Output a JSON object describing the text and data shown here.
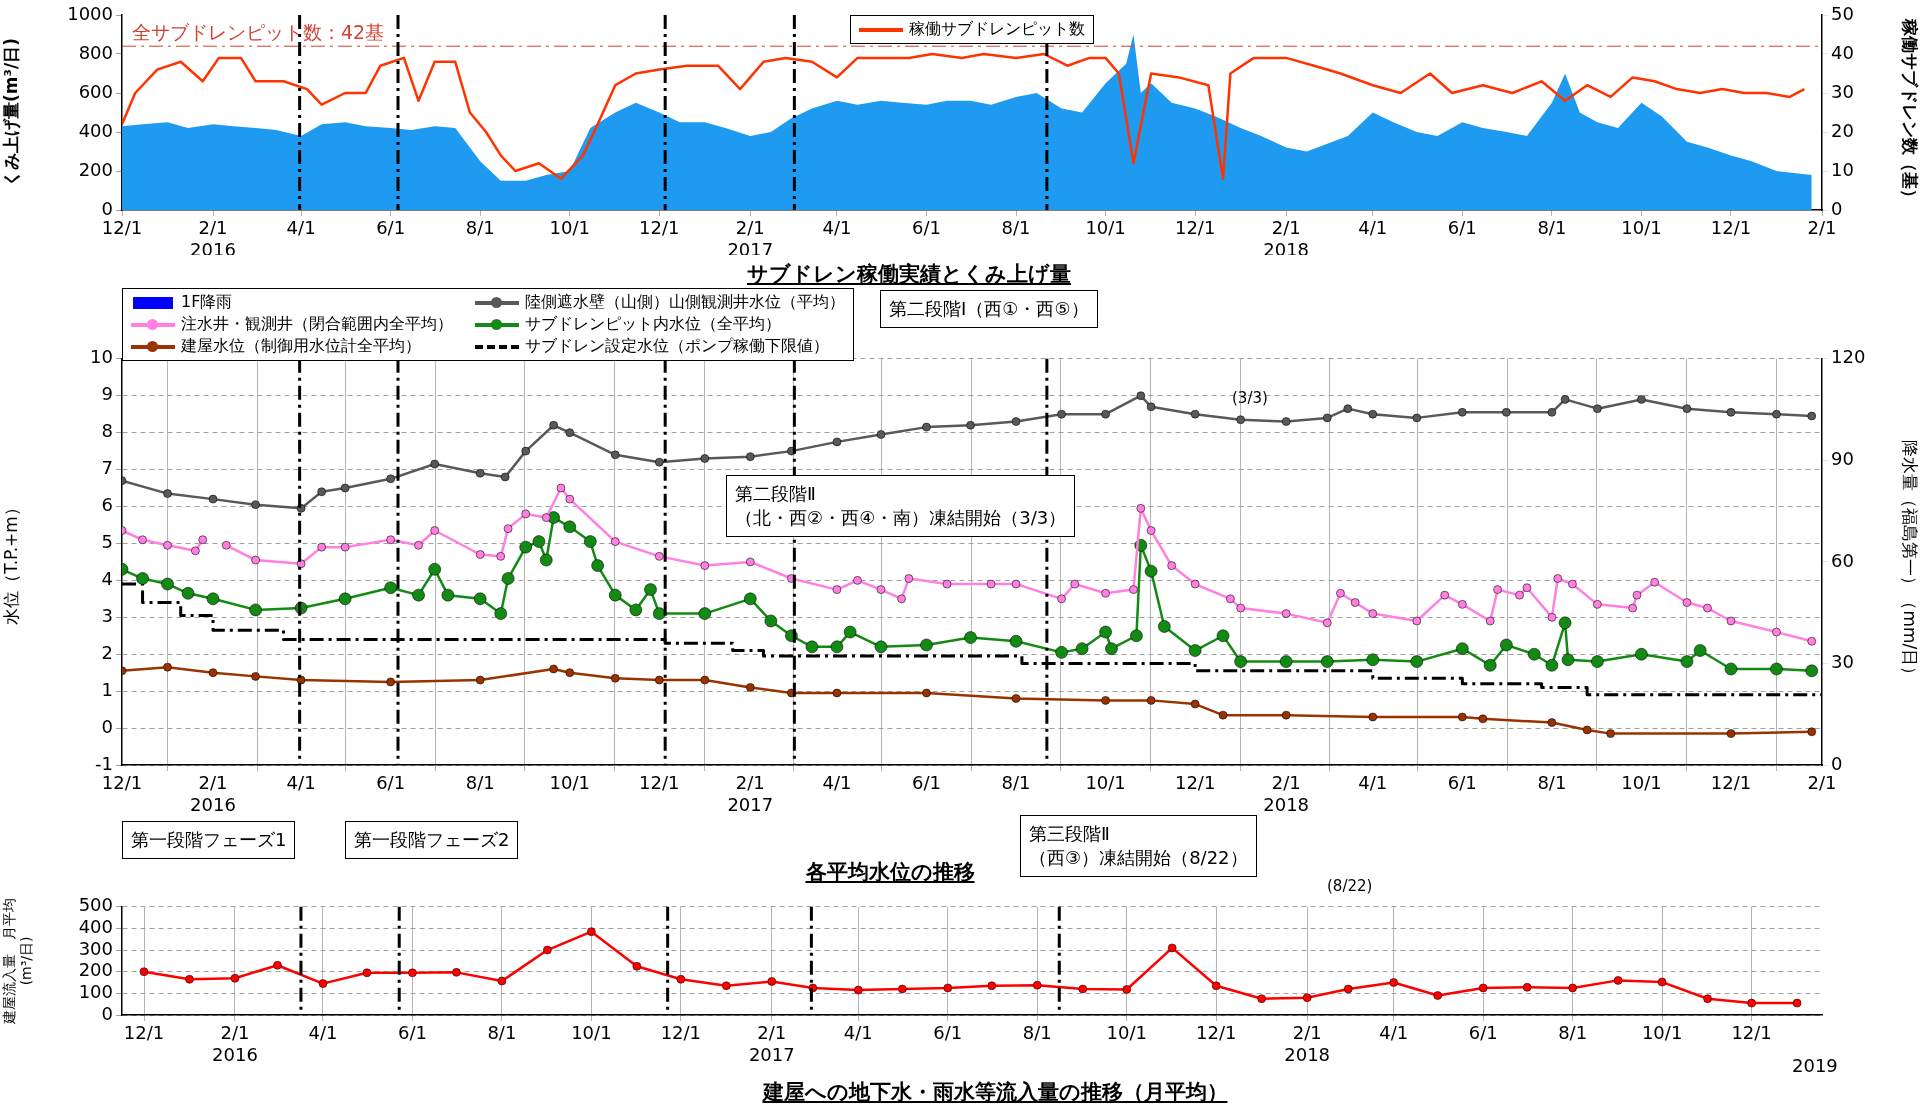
{
  "chart_data": [
    {
      "type": "area",
      "title": "サブドレン稼働実績とくみ上げ量",
      "ylabel": "くみ上げ量(m³/日)",
      "y2label": "稼働サブドレン数（基）",
      "xlim": [
        "2015-12-01",
        "2019-02-01"
      ],
      "xticks": [
        {
          "value": "2015-12-01",
          "label": "12/1"
        },
        {
          "value": "2016-02-01",
          "label": "2/1\n2016"
        },
        {
          "value": "2016-04-01",
          "label": "4/1"
        },
        {
          "value": "2016-06-01",
          "label": "6/1"
        },
        {
          "value": "2016-08-01",
          "label": "8/1"
        },
        {
          "value": "2016-10-01",
          "label": "10/1"
        },
        {
          "value": "2016-12-01",
          "label": "12/1"
        },
        {
          "value": "2017-02-01",
          "label": "2/1\n2017"
        },
        {
          "value": "2017-04-01",
          "label": "4/1"
        },
        {
          "value": "2017-06-01",
          "label": "6/1"
        },
        {
          "value": "2017-08-01",
          "label": "8/1"
        },
        {
          "value": "2017-10-01",
          "label": "10/1"
        },
        {
          "value": "2017-12-01",
          "label": "12/1"
        },
        {
          "value": "2018-02-01",
          "label": "2/1\n2018"
        },
        {
          "value": "2018-04-01",
          "label": "4/1"
        },
        {
          "value": "2018-06-01",
          "label": "6/1"
        },
        {
          "value": "2018-08-01",
          "label": "8/1"
        },
        {
          "value": "2018-10-01",
          "label": "10/1"
        },
        {
          "value": "2018-12-01",
          "label": "12/1"
        },
        {
          "value": "2019-02-01",
          "label": "2/1"
        }
      ],
      "ylim": [
        0,
        1000
      ],
      "yticks": [
        0,
        200,
        400,
        600,
        800,
        1000
      ],
      "y2lim": [
        0,
        50
      ],
      "y2ticks": [
        0,
        10,
        20,
        30,
        40,
        50
      ],
      "grid": false,
      "legend": "top",
      "ref_lines": [
        {
          "axis": "y2",
          "value": 42,
          "label": "全サブドレンピット数：42基",
          "color": "#d04030",
          "line_style": "dashed"
        },
        {
          "axis": "x",
          "value": "2016-03-31",
          "color": "#000000",
          "line_style": "dashed"
        },
        {
          "axis": "x",
          "value": "2016-06-06",
          "color": "#000000",
          "line_style": "dashed"
        },
        {
          "axis": "x",
          "value": "2016-12-05",
          "color": "#000000",
          "line_style": "dashed"
        },
        {
          "axis": "x",
          "value": "2017-03-03",
          "color": "#000000",
          "line_style": "dashed"
        },
        {
          "axis": "x",
          "value": "2017-08-22",
          "color": "#000000",
          "line_style": "dashed"
        }
      ],
      "series": [
        {
          "color": "#1e9bf0",
          "x": [
            "2015-12-01",
            "2015-12-15",
            "2016-01-01",
            "2016-01-15",
            "2016-02-01",
            "2016-02-15",
            "2016-03-01",
            "2016-03-15",
            "2016-04-01",
            "2016-04-15",
            "2016-05-01",
            "2016-05-15",
            "2016-06-01",
            "2016-06-15",
            "2016-07-01",
            "2016-07-15",
            "2016-08-01",
            "2016-08-15",
            "2016-09-01",
            "2016-09-15",
            "2016-10-01",
            "2016-10-15",
            "2016-11-01",
            "2016-11-15",
            "2016-12-01",
            "2016-12-15",
            "2017-01-01",
            "2017-01-15",
            "2017-02-01",
            "2017-02-15",
            "2017-03-01",
            "2017-03-15",
            "2017-04-01",
            "2017-04-15",
            "2017-05-01",
            "2017-05-15",
            "2017-06-01",
            "2017-06-15",
            "2017-07-01",
            "2017-07-15",
            "2017-08-01",
            "2017-08-15",
            "2017-09-01",
            "2017-09-15",
            "2017-10-01",
            "2017-10-15",
            "2017-10-20",
            "2017-10-25",
            "2017-11-01",
            "2017-11-15",
            "2017-12-01",
            "2017-12-15",
            "2018-01-01",
            "2018-01-15",
            "2018-02-01",
            "2018-02-15",
            "2018-03-01",
            "2018-03-15",
            "2018-04-01",
            "2018-04-15",
            "2018-05-01",
            "2018-05-15",
            "2018-06-01",
            "2018-06-15",
            "2018-07-01",
            "2018-07-15",
            "2018-08-01",
            "2018-08-10",
            "2018-08-20",
            "2018-09-01",
            "2018-09-15",
            "2018-10-01",
            "2018-10-15",
            "2018-11-01",
            "2018-11-15",
            "2018-12-01",
            "2018-12-15",
            "2019-01-01",
            "2019-01-25"
          ],
          "values": [
            430,
            440,
            450,
            420,
            440,
            430,
            420,
            410,
            380,
            440,
            450,
            430,
            420,
            410,
            430,
            420,
            250,
            150,
            150,
            180,
            200,
            420,
            500,
            550,
            500,
            450,
            450,
            420,
            380,
            400,
            470,
            520,
            560,
            540,
            560,
            550,
            540,
            560,
            560,
            540,
            580,
            600,
            520,
            500,
            650,
            750,
            900,
            600,
            650,
            550,
            520,
            480,
            420,
            380,
            320,
            300,
            340,
            380,
            500,
            450,
            400,
            380,
            450,
            420,
            400,
            380,
            550,
            700,
            500,
            450,
            420,
            550,
            480,
            350,
            320,
            280,
            250,
            200,
            180
          ]
        },
        {
          "type": "line",
          "name": "稼働サブドレンピット数",
          "axis": "y2",
          "color": "#ff3300",
          "marker": "none",
          "x": [
            "2015-12-01",
            "2015-12-10",
            "2015-12-25",
            "2016-01-10",
            "2016-01-25",
            "2016-02-05",
            "2016-02-20",
            "2016-03-01",
            "2016-03-20",
            "2016-04-05",
            "2016-04-15",
            "2016-05-01",
            "2016-05-15",
            "2016-05-25",
            "2016-06-10",
            "2016-06-20",
            "2016-07-01",
            "2016-07-15",
            "2016-07-25",
            "2016-08-05",
            "2016-08-15",
            "2016-08-25",
            "2016-09-10",
            "2016-09-25",
            "2016-10-10",
            "2016-10-20",
            "2016-11-01",
            "2016-11-15",
            "2016-12-01",
            "2016-12-20",
            "2017-01-10",
            "2017-01-25",
            "2017-02-10",
            "2017-02-25",
            "2017-03-15",
            "2017-04-01",
            "2017-04-15",
            "2017-05-01",
            "2017-05-20",
            "2017-06-05",
            "2017-06-25",
            "2017-07-10",
            "2017-08-01",
            "2017-08-20",
            "2017-09-05",
            "2017-09-20",
            "2017-10-01",
            "2017-10-10",
            "2017-10-20",
            "2017-11-01",
            "2017-11-20",
            "2017-12-10",
            "2017-12-20",
            "2017-12-25",
            "2018-01-10",
            "2018-02-01",
            "2018-02-20",
            "2018-03-10",
            "2018-04-01",
            "2018-04-20",
            "2018-05-10",
            "2018-05-25",
            "2018-06-15",
            "2018-07-05",
            "2018-07-25",
            "2018-08-10",
            "2018-08-25",
            "2018-09-10",
            "2018-09-25",
            "2018-10-10",
            "2018-10-25",
            "2018-11-10",
            "2018-11-25",
            "2018-12-10",
            "2018-12-25",
            "2019-01-10",
            "2019-01-20"
          ],
          "values": [
            22,
            30,
            36,
            38,
            33,
            39,
            39,
            33,
            33,
            31,
            27,
            30,
            30,
            37,
            39,
            28,
            38,
            38,
            25,
            20,
            14,
            10,
            12,
            8,
            14,
            22,
            32,
            35,
            36,
            37,
            37,
            31,
            38,
            39,
            38,
            34,
            39,
            39,
            39,
            40,
            39,
            40,
            39,
            40,
            37,
            39,
            39,
            35,
            12,
            35,
            34,
            32,
            8,
            35,
            39,
            39,
            37,
            35,
            32,
            30,
            35,
            30,
            32,
            30,
            33,
            28,
            32,
            29,
            34,
            33,
            31,
            30,
            31,
            30,
            30,
            29,
            31
          ]
        }
      ]
    },
    {
      "type": "line",
      "title": "各平均水位の推移",
      "ylabel": "水位（T.P.+m）",
      "y2label": "降水量（福島第一）（mm/日）",
      "xlim": [
        "2015-12-01",
        "2019-02-01"
      ],
      "xticks": [
        {
          "value": "2015-12-01",
          "label": "12/1"
        },
        {
          "value": "2016-02-01",
          "label": "2/1\n2016"
        },
        {
          "value": "2016-04-01",
          "label": "4/1"
        },
        {
          "value": "2016-06-01",
          "label": "6/1"
        },
        {
          "value": "2016-08-01",
          "label": "8/1"
        },
        {
          "value": "2016-10-01",
          "label": "10/1"
        },
        {
          "value": "2016-12-01",
          "label": "12/1"
        },
        {
          "value": "2017-02-01",
          "label": "2/1\n2017"
        },
        {
          "value": "2017-04-01",
          "label": "4/1"
        },
        {
          "value": "2017-06-01",
          "label": "6/1"
        },
        {
          "value": "2017-08-01",
          "label": "8/1"
        },
        {
          "value": "2017-10-01",
          "label": "10/1"
        },
        {
          "value": "2017-12-01",
          "label": "12/1"
        },
        {
          "value": "2018-02-01",
          "label": "2/1\n2018"
        },
        {
          "value": "2018-04-01",
          "label": "4/1"
        },
        {
          "value": "2018-06-01",
          "label": "6/1"
        },
        {
          "value": "2018-08-01",
          "label": "8/1"
        },
        {
          "value": "2018-10-01",
          "label": "10/1"
        },
        {
          "value": "2018-12-01",
          "label": "12/1"
        },
        {
          "value": "2019-02-01",
          "label": "2/1"
        }
      ],
      "ylim": [
        -1,
        10
      ],
      "yticks": [
        -1,
        0,
        1,
        2,
        3,
        4,
        5,
        6,
        7,
        8,
        9,
        10
      ],
      "y2lim": [
        0,
        120
      ],
      "y2ticks": [
        0,
        30,
        60,
        90,
        120
      ],
      "grid": true,
      "legend": "top left",
      "ref_lines": [
        {
          "axis": "x",
          "value": "2016-03-31",
          "color": "#000000",
          "line_style": "dashed"
        },
        {
          "axis": "x",
          "value": "2016-06-06",
          "color": "#000000",
          "line_style": "dashed"
        },
        {
          "axis": "x",
          "value": "2016-12-05",
          "color": "#000000",
          "line_style": "dashed"
        },
        {
          "axis": "x",
          "value": "2017-03-03",
          "color": "#000000",
          "line_style": "dashed"
        },
        {
          "axis": "x",
          "value": "2017-08-22",
          "color": "#000000",
          "line_style": "dashed"
        }
      ],
      "annotations": [
        "第二段階Ⅰ（西①・西⑤）",
        "第二段階Ⅱ\n（北・西②・西④・南）凍結開始（3/3）",
        "(3/3)"
      ],
      "series": [
        {
          "type": "bar",
          "name": "1F降雨",
          "axis": "y2",
          "color": "#0000ff"
        },
        {
          "name": "陸側遮水壁（山側）山側観測井水位（平均）",
          "color": "#595959",
          "marker": "circle",
          "x": [
            "2015-12-01",
            "2016-01-01",
            "2016-02-01",
            "2016-03-01",
            "2016-04-01",
            "2016-04-15",
            "2016-05-01",
            "2016-06-01",
            "2016-07-01",
            "2016-08-01",
            "2016-08-18",
            "2016-09-01",
            "2016-09-20",
            "2016-10-01",
            "2016-11-01",
            "2016-12-01",
            "2017-01-01",
            "2017-02-01",
            "2017-03-01",
            "2017-04-01",
            "2017-05-01",
            "2017-06-01",
            "2017-07-01",
            "2017-08-01",
            "2017-09-01",
            "2017-10-01",
            "2017-10-25",
            "2017-11-01",
            "2017-12-01",
            "2018-01-01",
            "2018-02-01",
            "2018-03-01",
            "2018-03-15",
            "2018-04-01",
            "2018-05-01",
            "2018-06-01",
            "2018-07-01",
            "2018-08-01",
            "2018-08-10",
            "2018-09-01",
            "2018-10-01",
            "2018-11-01",
            "2018-12-01",
            "2019-01-01",
            "2019-01-25"
          ],
          "values": [
            6.7,
            6.35,
            6.2,
            6.05,
            5.95,
            6.4,
            6.5,
            6.75,
            7.15,
            6.9,
            6.8,
            7.5,
            8.2,
            8.0,
            7.4,
            7.2,
            7.3,
            7.35,
            7.5,
            7.75,
            7.95,
            8.15,
            8.2,
            8.3,
            8.5,
            8.5,
            9.0,
            8.7,
            8.5,
            8.35,
            8.3,
            8.4,
            8.65,
            8.5,
            8.4,
            8.55,
            8.55,
            8.55,
            8.9,
            8.65,
            8.9,
            8.65,
            8.55,
            8.5,
            8.45
          ]
        },
        {
          "name": "注水井・観測井（閉合範囲内全平均）",
          "color": "#ff80e0",
          "marker": "circle",
          "x": [
            "2015-12-01",
            "2015-12-15",
            "2016-01-01",
            "2016-01-20",
            "2016-01-25",
            "2016-02-01",
            "2016-02-10",
            "2016-03-01",
            "2016-04-01",
            "2016-04-15",
            "2016-05-01",
            "2016-06-01",
            "2016-06-20",
            "2016-07-01",
            "2016-08-01",
            "2016-08-15",
            "2016-08-20",
            "2016-09-01",
            "2016-09-15",
            "2016-09-25",
            "2016-10-01",
            "2016-11-01",
            "2016-12-01",
            "2017-01-01",
            "2017-02-01",
            "2017-03-01",
            "2017-04-01",
            "2017-04-15",
            "2017-05-01",
            "2017-05-15",
            "2017-05-20",
            "2017-06-15",
            "2017-07-15",
            "2017-08-01",
            "2017-09-01",
            "2017-09-10",
            "2017-10-01",
            "2017-10-20",
            "2017-10-25",
            "2017-11-01",
            "2017-11-15",
            "2017-12-01",
            "2017-12-25",
            "2018-01-01",
            "2018-02-01",
            "2018-03-01",
            "2018-03-10",
            "2018-03-20",
            "2018-04-01",
            "2018-05-01",
            "2018-05-20",
            "2018-06-01",
            "2018-06-20",
            "2018-06-25",
            "2018-07-10",
            "2018-07-15",
            "2018-08-01",
            "2018-08-05",
            "2018-08-15",
            "2018-09-01",
            "2018-09-25",
            "2018-09-28",
            "2018-10-10",
            "2018-11-01",
            "2018-11-15",
            "2018-12-01",
            "2019-01-01",
            "2019-01-25"
          ],
          "values": [
            5.35,
            5.1,
            4.95,
            4.8,
            5.1,
            null,
            4.95,
            4.55,
            4.45,
            4.9,
            4.9,
            5.1,
            4.95,
            5.35,
            4.7,
            4.65,
            5.4,
            5.8,
            5.7,
            6.5,
            6.2,
            5.05,
            4.65,
            4.4,
            4.5,
            4.05,
            3.75,
            4.0,
            3.75,
            3.5,
            4.05,
            3.9,
            3.9,
            3.9,
            3.5,
            3.9,
            3.65,
            3.75,
            5.95,
            5.35,
            4.4,
            3.9,
            3.5,
            3.25,
            3.1,
            2.85,
            3.65,
            3.4,
            3.1,
            2.9,
            3.6,
            3.35,
            2.9,
            3.75,
            3.6,
            3.8,
            3.0,
            4.05,
            3.9,
            3.35,
            3.25,
            3.6,
            3.95,
            3.4,
            3.25,
            2.9,
            2.6,
            2.35
          ]
        },
        {
          "name": "サブドレンピット内水位（全平均）",
          "color": "#138a13",
          "marker": "circle",
          "x": [
            "2015-12-01",
            "2015-12-15",
            "2016-01-01",
            "2016-01-15",
            "2016-02-01",
            "2016-03-01",
            "2016-04-01",
            "2016-05-01",
            "2016-06-01",
            "2016-06-20",
            "2016-07-01",
            "2016-07-10",
            "2016-08-01",
            "2016-08-15",
            "2016-08-20",
            "2016-09-01",
            "2016-09-10",
            "2016-09-15",
            "2016-09-20",
            "2016-10-01",
            "2016-10-15",
            "2016-10-20",
            "2016-11-01",
            "2016-11-15",
            "2016-11-25",
            "2016-12-01",
            "2017-01-01",
            "2017-02-01",
            "2017-02-15",
            "2017-03-01",
            "2017-03-15",
            "2017-04-01",
            "2017-04-10",
            "2017-05-01",
            "2017-06-01",
            "2017-07-01",
            "2017-08-01",
            "2017-09-01",
            "2017-09-15",
            "2017-10-01",
            "2017-10-05",
            "2017-10-22",
            "2017-10-25",
            "2017-11-01",
            "2017-11-10",
            "2017-12-01",
            "2017-12-20",
            "2018-01-01",
            "2018-02-01",
            "2018-03-01",
            "2018-04-01",
            "2018-05-01",
            "2018-06-01",
            "2018-06-20",
            "2018-07-01",
            "2018-07-20",
            "2018-08-01",
            "2018-08-10",
            "2018-08-12",
            "2018-09-01",
            "2018-10-01",
            "2018-11-01",
            "2018-11-10",
            "2018-12-01",
            "2019-01-01",
            "2019-01-25"
          ],
          "values": [
            4.3,
            4.05,
            3.9,
            3.65,
            3.5,
            3.2,
            3.25,
            3.5,
            3.8,
            3.6,
            4.3,
            3.6,
            3.5,
            3.1,
            4.05,
            4.9,
            5.05,
            4.55,
            5.7,
            5.45,
            5.05,
            4.4,
            3.6,
            3.2,
            3.75,
            3.1,
            3.1,
            3.5,
            2.9,
            2.5,
            2.2,
            2.2,
            2.6,
            2.2,
            2.25,
            2.45,
            2.35,
            2.05,
            2.15,
            2.6,
            2.15,
            2.5,
            4.95,
            4.25,
            2.75,
            2.1,
            2.5,
            1.8,
            1.8,
            1.8,
            1.85,
            1.8,
            2.15,
            1.7,
            2.25,
            2.0,
            1.7,
            2.85,
            1.85,
            1.8,
            2.0,
            1.8,
            2.1,
            1.6,
            1.6,
            1.55
          ]
        },
        {
          "name": "建屋水位（制御用水位計全平均）",
          "color": "#993300",
          "marker": "circle",
          "x": [
            "2015-12-01",
            "2016-01-01",
            "2016-02-01",
            "2016-03-01",
            "2016-04-01",
            "2016-06-01",
            "2016-08-01",
            "2016-09-20",
            "2016-10-01",
            "2016-11-01",
            "2016-12-01",
            "2017-01-01",
            "2017-02-01",
            "2017-03-01",
            "2017-04-01",
            "2017-06-01",
            "2017-08-01",
            "2017-10-01",
            "2017-11-01",
            "2017-12-01",
            "2017-12-20",
            "2018-02-01",
            "2018-04-01",
            "2018-06-01",
            "2018-06-15",
            "2018-08-01",
            "2018-08-25",
            "2018-09-10",
            "2018-12-01",
            "2019-01-25"
          ],
          "values": [
            1.55,
            1.65,
            1.5,
            1.4,
            1.3,
            1.25,
            1.3,
            1.6,
            1.5,
            1.35,
            1.3,
            1.3,
            1.1,
            0.95,
            0.95,
            0.95,
            0.8,
            0.75,
            0.75,
            0.65,
            0.35,
            0.35,
            0.3,
            0.3,
            0.25,
            0.15,
            -0.05,
            -0.15,
            -0.15,
            -0.1
          ]
        },
        {
          "type": "step",
          "name": "サブドレン設定水位（ポンプ稼働下限値）",
          "color": "#000000",
          "marker": "none",
          "line_style": "dashed",
          "x": [
            "2015-12-01",
            "2015-12-15",
            "2016-01-10",
            "2016-02-01",
            "2016-03-20",
            "2016-12-05",
            "2017-01-20",
            "2017-02-10",
            "2017-08-05",
            "2017-12-01",
            "2018-04-01",
            "2018-06-01",
            "2018-07-25",
            "2018-08-25",
            "2019-02-01"
          ],
          "values": [
            3.9,
            3.4,
            3.05,
            2.65,
            2.4,
            2.3,
            2.1,
            1.95,
            1.75,
            1.55,
            1.35,
            1.2,
            1.1,
            0.9,
            0.9
          ]
        }
      ]
    },
    {
      "type": "line",
      "title": "建屋への地下水・雨水等流入量の推移（月平均）",
      "ylabel": "建屋流入量　月平均\n(m³/日)",
      "xlim": [
        "2015-11-16",
        "2019-01-18"
      ],
      "xticks": [
        {
          "value": "2015-12-01",
          "label": "12/1"
        },
        {
          "value": "2016-02-01",
          "label": "2/1\n2016"
        },
        {
          "value": "2016-04-01",
          "label": "4/1"
        },
        {
          "value": "2016-06-01",
          "label": "6/1"
        },
        {
          "value": "2016-08-01",
          "label": "8/1"
        },
        {
          "value": "2016-10-01",
          "label": "10/1"
        },
        {
          "value": "2016-12-01",
          "label": "12/1"
        },
        {
          "value": "2017-02-01",
          "label": "2/1\n2017"
        },
        {
          "value": "2017-04-01",
          "label": "4/1"
        },
        {
          "value": "2017-06-01",
          "label": "6/1"
        },
        {
          "value": "2017-08-01",
          "label": "8/1"
        },
        {
          "value": "2017-10-01",
          "label": "10/1"
        },
        {
          "value": "2017-12-01",
          "label": "12/1"
        },
        {
          "value": "2018-02-01",
          "label": "2/1\n2018"
        },
        {
          "value": "2018-04-01",
          "label": "4/1"
        },
        {
          "value": "2018-06-01",
          "label": "6/1"
        },
        {
          "value": "2018-08-01",
          "label": "8/1"
        },
        {
          "value": "2018-10-01",
          "label": "10/1"
        },
        {
          "value": "2018-12-01",
          "label": "12/1"
        }
      ],
      "ylim": [
        0,
        500
      ],
      "yticks": [
        0,
        100,
        200,
        300,
        400,
        500
      ],
      "grid": true,
      "ref_lines": [
        {
          "axis": "x",
          "value": "2016-03-17",
          "color": "#000000",
          "line_style": "dashed"
        },
        {
          "axis": "x",
          "value": "2016-05-23",
          "color": "#000000",
          "line_style": "dashed"
        },
        {
          "axis": "x",
          "value": "2016-11-22",
          "color": "#000000",
          "line_style": "dashed"
        },
        {
          "axis": "x",
          "value": "2017-02-28",
          "color": "#000000",
          "line_style": "dashed"
        },
        {
          "axis": "x",
          "value": "2017-08-16",
          "color": "#000000",
          "line_style": "dashed"
        }
      ],
      "annotations": [
        "第一段階フェーズ1",
        "第一段階フェーズ2",
        "第三段階Ⅱ\n（西③）凍結開始（8/22）",
        "(8/22)",
        "2019"
      ],
      "series": [
        {
          "color": "#ff0000",
          "marker": "circle",
          "x": [
            "2015-12-01",
            "2016-01-01",
            "2016-02-01",
            "2016-03-01",
            "2016-04-01",
            "2016-05-01",
            "2016-06-01",
            "2016-07-01",
            "2016-08-01",
            "2016-09-01",
            "2016-10-01",
            "2016-11-01",
            "2016-12-01",
            "2017-01-01",
            "2017-02-01",
            "2017-03-01",
            "2017-04-01",
            "2017-05-01",
            "2017-06-01",
            "2017-07-01",
            "2017-08-01",
            "2017-09-01",
            "2017-10-01",
            "2017-11-01",
            "2017-12-01",
            "2018-01-01",
            "2018-02-01",
            "2018-03-01",
            "2018-04-01",
            "2018-05-01",
            "2018-06-01",
            "2018-07-01",
            "2018-08-01",
            "2018-09-01",
            "2018-10-01",
            "2018-11-01",
            "2018-12-01",
            "2019-01-01"
          ],
          "values": [
            200,
            165,
            170,
            230,
            145,
            195,
            195,
            197,
            157,
            300,
            385,
            225,
            165,
            135,
            155,
            125,
            115,
            120,
            125,
            135,
            138,
            120,
            118,
            310,
            135,
            75,
            80,
            120,
            150,
            90,
            125,
            128,
            125,
            160,
            152,
            75,
            55,
            55
          ]
        }
      ]
    }
  ]
}
